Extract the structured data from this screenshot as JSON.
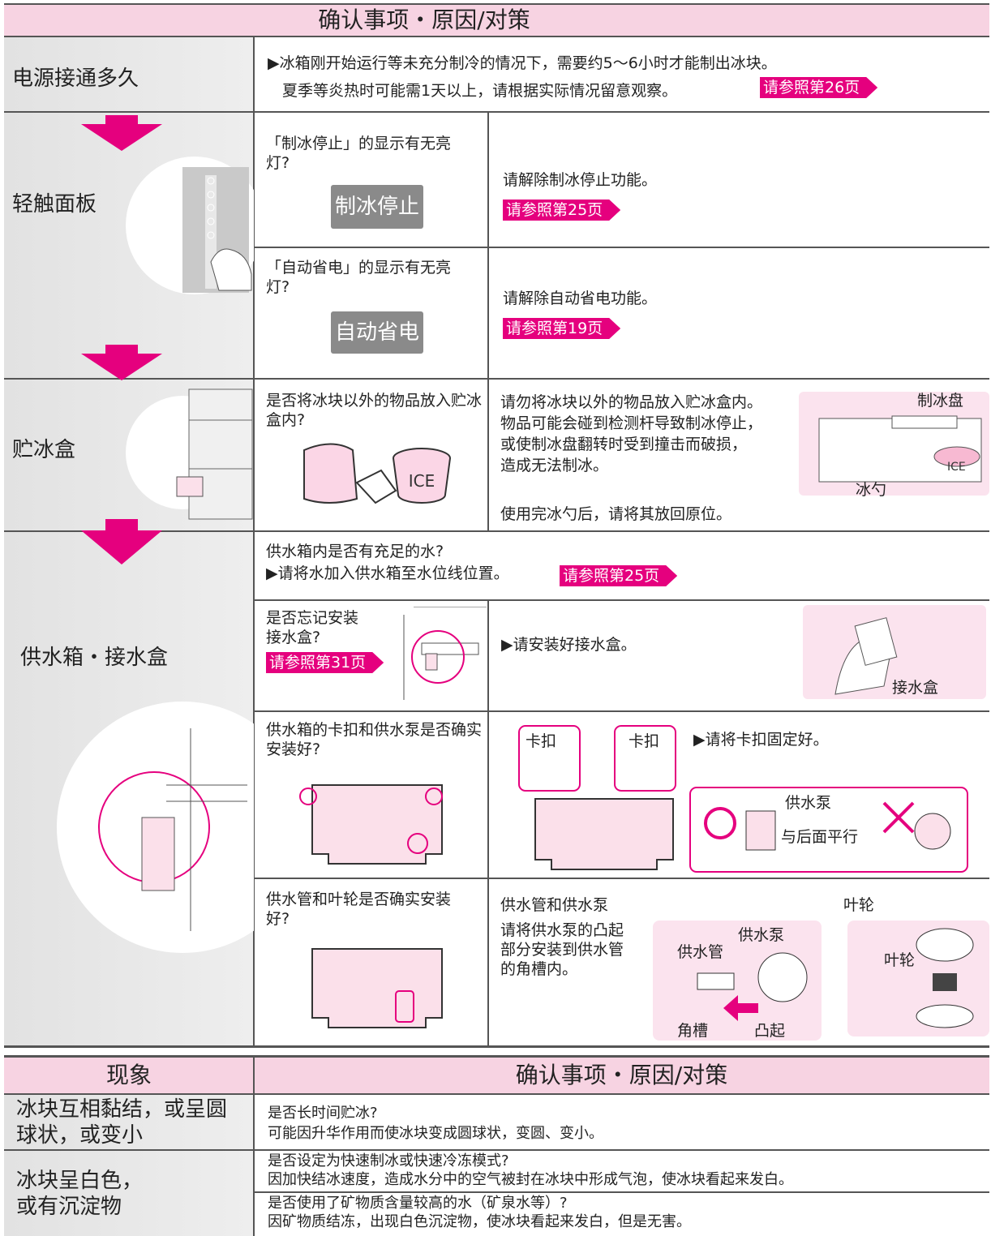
{
  "header": {
    "title": "确认事项・原因/对策"
  },
  "rows": [
    {
      "label": "电源接通多久",
      "text": [
        "▶冰箱刚开始运行等未充分制冷的情况下，需要约5～6小时才能制出冰块。",
        "夏季等炎热时可能需1天以上，请根据实际情况留意观察。"
      ],
      "link": "请参照第26页"
    },
    {
      "label": "轻触面板",
      "checks": [
        {
          "question": "「制冰停止」的显示有无亮灯?",
          "button": "制冰停止",
          "action": "请解除制冰停止功能。",
          "link": "请参照第25页"
        },
        {
          "question": "「自动省电」的显示有无亮灯?",
          "button": "自动省电",
          "action": "请解除自动省电功能。",
          "link": "请参照第19页"
        }
      ]
    },
    {
      "label": "贮冰盒",
      "question": "是否将冰块以外的物品放入贮冰盒内?",
      "icon_text": "ICE",
      "action": [
        "请勿将冰块以外的物品放入贮冰盒内。",
        "物品可能会碰到检测杆导致制冰停止，",
        "或使制冰盘翻转时受到撞击而破损，",
        "造成无法制冰。"
      ],
      "note": "使用完冰勺后，请将其放回原位。",
      "figure_labels": [
        "制冰盘",
        "ICE",
        "冰勺"
      ]
    },
    {
      "label": "供水箱・接水盒",
      "checks": [
        {
          "question": "供水箱内是否有充足的水?",
          "action": "▶请将水加入供水箱至水位线位置。",
          "link": "请参照第25页"
        },
        {
          "question": "是否忘记安装接水盒?",
          "link": "请参照第31页",
          "action": "▶请安装好接水盒。",
          "figure_label": "接水盒"
        },
        {
          "question": "供水箱的卡扣和供水泵是否确实安装好?",
          "action": "▶请将卡扣固定好。",
          "figure_labels": [
            "卡扣",
            "卡扣",
            "供水泵",
            "与后面平行"
          ]
        },
        {
          "question": "供水管和叶轮是否确实安装好?",
          "action_title": "供水管和供水泵",
          "action": "请将供水泵的凸起部分安装到供水管的角槽内。",
          "figure_labels": [
            "供水泵",
            "供水管",
            "角槽",
            "凸起"
          ],
          "impeller_title": "叶轮",
          "impeller_label": "叶轮"
        }
      ]
    }
  ],
  "table2": {
    "headers": [
      "现象",
      "确认事项・原因/对策"
    ],
    "rows": [
      {
        "symptom": "冰块互相黏结，或呈圆球状，或变小",
        "checks": [
          {
            "question": "是否长时间贮冰?",
            "cause": "可能因升华作用而使冰块变成圆球状，变圆、变小。"
          }
        ]
      },
      {
        "symptom": "冰块呈白色，或有沉淀物",
        "checks": [
          {
            "question": "是否设定为快速制冰或快速冷冻模式?",
            "cause": "因加快结冰速度，造成水分中的空气被封在冰块中形成气泡，使冰块看起来发白。"
          },
          {
            "question": "是否使用了矿物质含量较高的水（矿泉水等）?",
            "cause": "因矿物质结冻，出现白色沉淀物，使冰块看起来发白，但是无害。"
          }
        ]
      }
    ]
  }
}
